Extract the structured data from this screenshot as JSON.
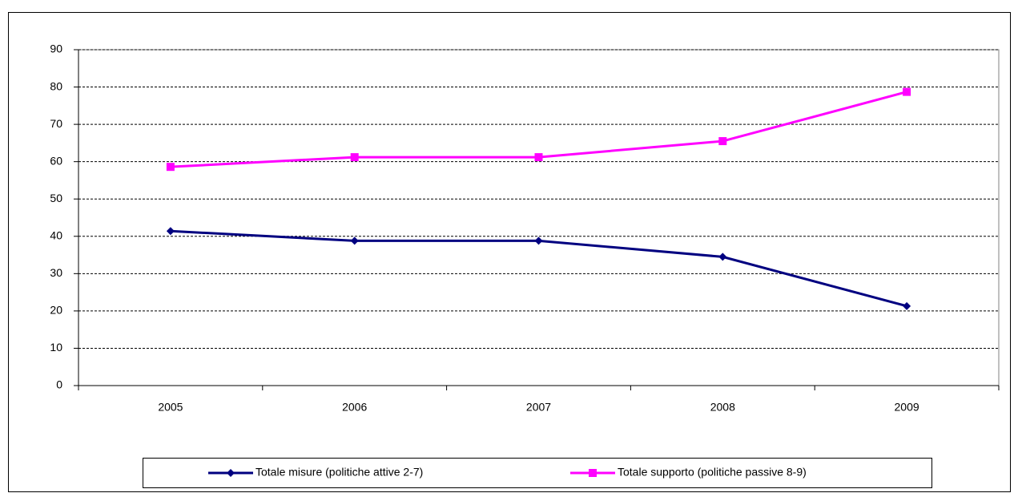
{
  "chart_data": {
    "type": "line",
    "categories": [
      "2005",
      "2006",
      "2007",
      "2008",
      "2009"
    ],
    "series": [
      {
        "name": "Totale misure (politiche attive 2-7)",
        "color": "#000080",
        "marker": "diamond",
        "values": [
          41.4,
          38.8,
          38.8,
          34.5,
          21.3
        ]
      },
      {
        "name": "Totale supporto (politiche passive 8-9)",
        "color": "#ff00ff",
        "marker": "square",
        "values": [
          58.6,
          61.2,
          61.2,
          65.5,
          78.7
        ]
      }
    ],
    "ylim": [
      0,
      90
    ],
    "yticks": [
      0,
      10,
      20,
      30,
      40,
      50,
      60,
      70,
      80,
      90
    ],
    "grid": true,
    "legend": "bottom"
  }
}
